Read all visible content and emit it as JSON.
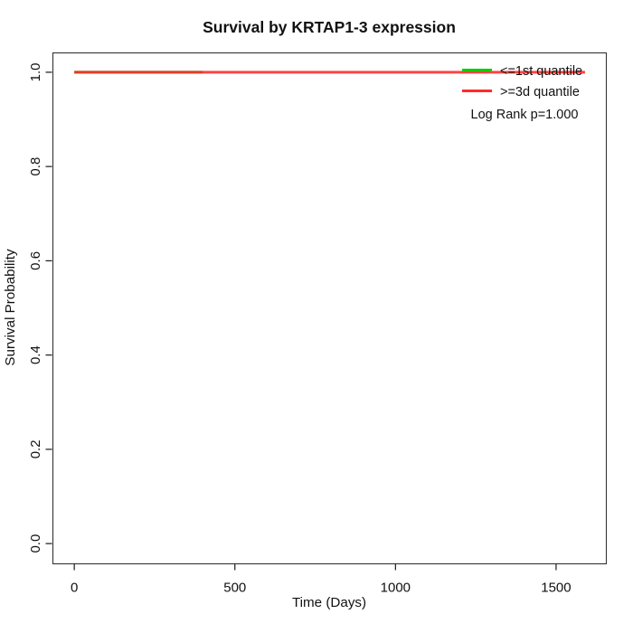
{
  "chart_data": {
    "type": "line",
    "title": "Survival by KRTAP1-3 expression",
    "xlabel": "Time (Days)",
    "ylabel": "Survival Probability",
    "xlim": [
      -68,
      1655
    ],
    "ylim": [
      -0.042,
      1.042
    ],
    "x_ticks": [
      0,
      500,
      1000,
      1500
    ],
    "y_ticks": [
      "0.0",
      "0.2",
      "0.4",
      "0.6",
      "0.8",
      "1.0"
    ],
    "grid": false,
    "legend_position": "topright",
    "series": [
      {
        "name": "<=1st quantile",
        "color": "#00CD00",
        "x": [
          0,
          400
        ],
        "y": [
          1.0,
          1.0
        ]
      },
      {
        "name": ">=3d quantile",
        "color": "#FF2A2A",
        "x": [
          0,
          1590
        ],
        "y": [
          1.0,
          1.0
        ]
      }
    ],
    "annotation": "Log Rank p=1.000",
    "colors": {
      "axis": "#1a1a1a",
      "text": "#111111",
      "background": "#ffffff"
    }
  }
}
